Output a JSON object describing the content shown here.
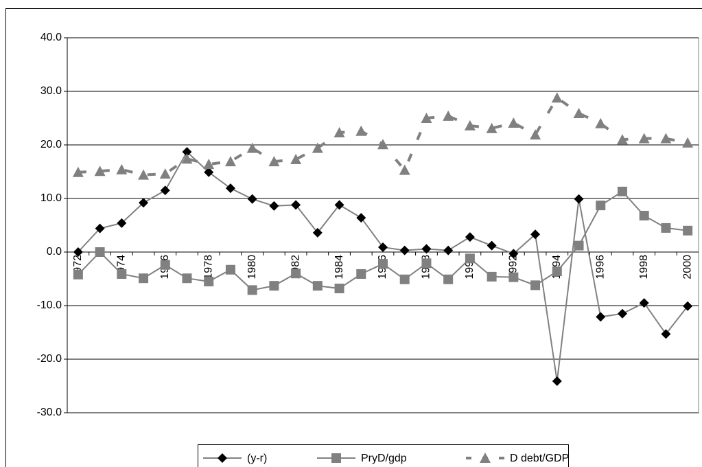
{
  "chart_data": {
    "type": "line",
    "categories": [
      "1972",
      null,
      "1974",
      null,
      "1976",
      null,
      "1978",
      null,
      "1980",
      null,
      "1982",
      null,
      "1984",
      null,
      "1986",
      null,
      "1988",
      null,
      "1990",
      null,
      "1992",
      null,
      "1994",
      null,
      "1996",
      null,
      "1998",
      null,
      "2000"
    ],
    "series": [
      {
        "name": "(y-r)",
        "color": "#000000",
        "line_color": "#808080",
        "marker": "diamond",
        "dashed": false,
        "values": [
          0,
          4.4,
          5.4,
          9.2,
          11.5,
          18.7,
          14.9,
          11.9,
          9.9,
          8.6,
          8.8,
          3.6,
          8.8,
          6.4,
          0.9,
          0.3,
          0.6,
          0.3,
          2.8,
          1.2,
          -0.3,
          3.3,
          -24.1,
          9.9,
          -12.1,
          -11.5,
          -9.5,
          -15.3,
          -10.1
        ]
      },
      {
        "name": "PryD/gdp",
        "color": "#808080",
        "line_color": "#808080",
        "marker": "square",
        "dashed": false,
        "values": [
          -4.2,
          0,
          -4.1,
          -4.9,
          -2.4,
          -4.9,
          -5.5,
          -3.3,
          -7.1,
          -6.3,
          -4.0,
          -6.3,
          -6.8,
          -4.1,
          -2.2,
          -5.1,
          -2.1,
          -5.1,
          -1.2,
          -4.6,
          -4.7,
          -6.2,
          -3.6,
          1.2,
          8.7,
          11.3,
          6.8,
          4.5,
          4.0
        ]
      },
      {
        "name": "D debt/GDP",
        "color": "#808080",
        "line_color": "#808080",
        "marker": "triangle",
        "dashed": true,
        "values": [
          14.9,
          15.1,
          15.4,
          14.4,
          14.6,
          17.4,
          16.4,
          16.9,
          19.4,
          16.9,
          17.3,
          19.4,
          22.3,
          22.6,
          20.1,
          15.3,
          25.0,
          25.4,
          23.6,
          23.1,
          24.1,
          21.9,
          28.8,
          25.9,
          24.0,
          21.0,
          21.2,
          21.2,
          20.4
        ]
      }
    ],
    "ylim": [
      -30,
      40
    ],
    "yticks": [
      {
        "value": -30,
        "label": "-30.0"
      },
      {
        "value": -20,
        "label": "-20.0"
      },
      {
        "value": -10,
        "label": "-10.0"
      },
      {
        "value": 0,
        "label": "0.0"
      },
      {
        "value": 10,
        "label": "10.0"
      },
      {
        "value": 20,
        "label": "20.0"
      },
      {
        "value": 30,
        "label": "30.0"
      },
      {
        "value": 40,
        "label": "40.0"
      }
    ],
    "grid": true,
    "legend": "bottom"
  }
}
